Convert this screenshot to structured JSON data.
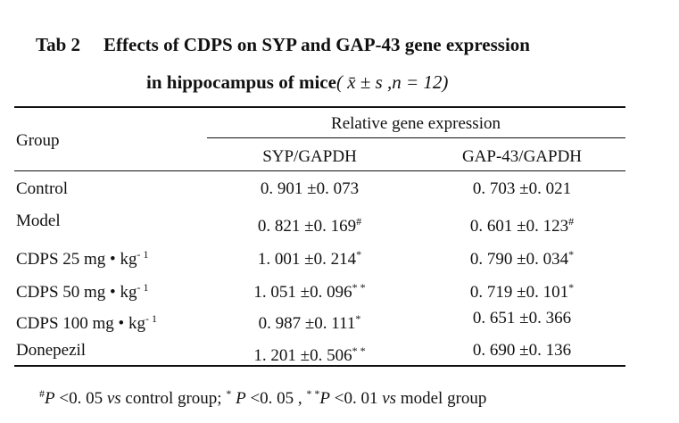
{
  "caption": {
    "label": "Tab 2",
    "title_line1": "Effects of CDPS on SYP and GAP-43 gene expression",
    "title_line2": "in hippocampus of mice",
    "stats": "( x̄ ± s ,n = 12)"
  },
  "table": {
    "group_header": "Group",
    "span_header": "Relative gene expression",
    "columns": [
      "SYP/GAPDH",
      "GAP-43/GAPDH"
    ],
    "rows": [
      [
        {
          "text": "Control"
        },
        {
          "text": "0. 901 ±0. 073"
        },
        {
          "text": "0. 703 ±0. 021"
        }
      ],
      [
        {
          "text": "Model"
        },
        {
          "text": "0. 821 ±0. 169",
          "sup": "#"
        },
        {
          "text": "0. 601 ±0. 123",
          "sup": "#"
        }
      ],
      [
        {
          "text": "CDPS 25 mg • kg",
          "sup": "- 1"
        },
        {
          "text": "1. 001 ±0. 214",
          "sup": "*"
        },
        {
          "text": "0. 790 ±0. 034",
          "sup": "*"
        }
      ],
      [
        {
          "text": "CDPS 50 mg • kg",
          "sup": "- 1"
        },
        {
          "text": "1. 051 ±0. 096",
          "sup": "* *"
        },
        {
          "text": "0. 719 ±0. 101",
          "sup": "*"
        }
      ],
      [
        {
          "text": "CDPS 100 mg • kg",
          "sup": "- 1"
        },
        {
          "text": "0. 987 ±0. 111",
          "sup": "*"
        },
        {
          "text": "0. 651 ±0. 366"
        }
      ],
      [
        {
          "text": "Donepezil"
        },
        {
          "text": "1. 201 ±0. 506",
          "sup": "* *"
        },
        {
          "text": "0. 690 ±0. 136"
        }
      ]
    ]
  },
  "footnote": [
    "#",
    "P",
    " <0. 05 ",
    "vs",
    " control group; ",
    "*",
    " P",
    " <0. 05 , ",
    "* *",
    "P",
    " <0. 01 ",
    "vs",
    " model group"
  ]
}
